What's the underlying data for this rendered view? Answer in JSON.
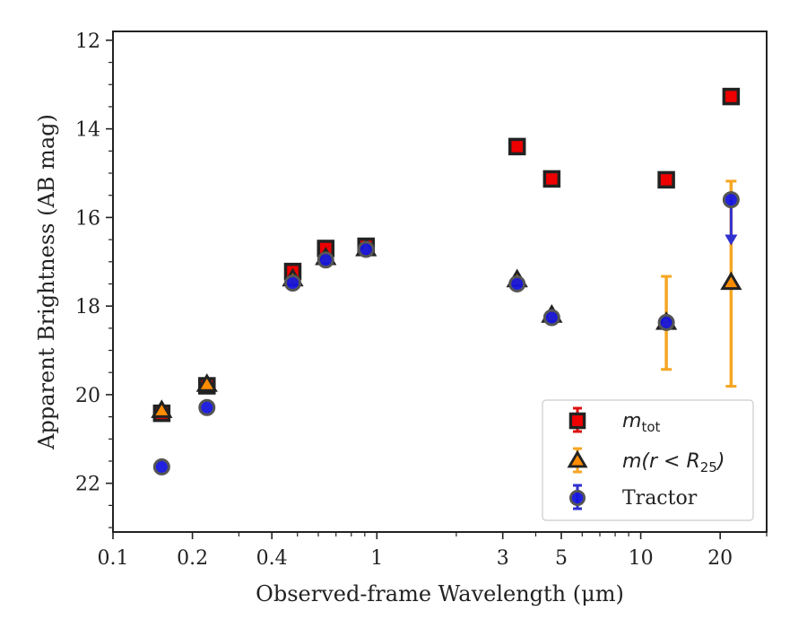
{
  "chart_data": {
    "type": "scatter",
    "xlabel": "Observed-frame Wavelength (μm)",
    "ylabel": "Apparent Brightness (AB mag)",
    "xscale": "log",
    "xlim": [
      0.1,
      30
    ],
    "ylim": [
      23.1,
      11.8
    ],
    "y_inverted": true,
    "x_ticks": [
      {
        "value": 0.1,
        "label": "0.1"
      },
      {
        "value": 0.2,
        "label": "0.2"
      },
      {
        "value": 0.4,
        "label": "0.4"
      },
      {
        "value": 1,
        "label": "1"
      },
      {
        "value": 3,
        "label": "3"
      },
      {
        "value": 5,
        "label": "5"
      },
      {
        "value": 10,
        "label": "10"
      },
      {
        "value": 20,
        "label": "20"
      }
    ],
    "y_ticks": [
      {
        "value": 12,
        "label": "12"
      },
      {
        "value": 14,
        "label": "14"
      },
      {
        "value": 16,
        "label": "16"
      },
      {
        "value": 18,
        "label": "18"
      },
      {
        "value": 20,
        "label": "20"
      },
      {
        "value": 22,
        "label": "22"
      }
    ],
    "grid": false,
    "legend_position": "lower-right",
    "series": [
      {
        "name": "m_tot",
        "marker": "square",
        "color": "#ee0000",
        "edge_color": "#222222",
        "err_color": "#dd1111",
        "points": [
          {
            "x": 0.153,
            "y": 20.42
          },
          {
            "x": 0.227,
            "y": 19.8
          },
          {
            "x": 0.48,
            "y": 17.22
          },
          {
            "x": 0.64,
            "y": 16.7
          },
          {
            "x": 0.91,
            "y": 16.65
          },
          {
            "x": 3.4,
            "y": 14.4
          },
          {
            "x": 4.6,
            "y": 15.13
          },
          {
            "x": 12.5,
            "y": 15.15
          },
          {
            "x": 22.0,
            "y": 13.27
          }
        ]
      },
      {
        "name": "m(r < R25)",
        "marker": "triangle",
        "color": "#ff8c00",
        "edge_color": "#222222",
        "err_color": "#f5a623",
        "points": [
          {
            "x": 0.153,
            "y": 20.37
          },
          {
            "x": 0.227,
            "y": 19.78
          },
          {
            "x": 0.48,
            "y": 17.4
          },
          {
            "x": 0.64,
            "y": 16.92
          },
          {
            "x": 0.91,
            "y": 16.72
          },
          {
            "x": 3.4,
            "y": 17.42
          },
          {
            "x": 4.6,
            "y": 18.22
          },
          {
            "x": 12.5,
            "y": 18.38,
            "err_low": 1.05,
            "err_high": 1.05
          },
          {
            "x": 22.0,
            "y": 17.48,
            "err_low": 2.3,
            "err_high": 2.33
          }
        ]
      },
      {
        "name": "Tractor",
        "marker": "circle",
        "color": "#1515dd",
        "edge_color": "#555555",
        "err_color": "#3030d0",
        "points": [
          {
            "x": 0.153,
            "y": 21.63
          },
          {
            "x": 0.227,
            "y": 20.29
          },
          {
            "x": 0.48,
            "y": 17.48
          },
          {
            "x": 0.64,
            "y": 16.96
          },
          {
            "x": 0.91,
            "y": 16.72
          },
          {
            "x": 3.4,
            "y": 17.5
          },
          {
            "x": 4.6,
            "y": 18.26
          },
          {
            "x": 12.5,
            "y": 18.37
          },
          {
            "x": 22.0,
            "y": 15.6,
            "upper_limit_arrow_to": 16.55
          }
        ]
      }
    ],
    "legend": [
      {
        "label": "m",
        "sub": "tot",
        "style": "math"
      },
      {
        "label": "m(r < R",
        "sub": "25",
        "tail": ")",
        "style": "math"
      },
      {
        "label": "Tractor",
        "style": "text"
      }
    ]
  }
}
